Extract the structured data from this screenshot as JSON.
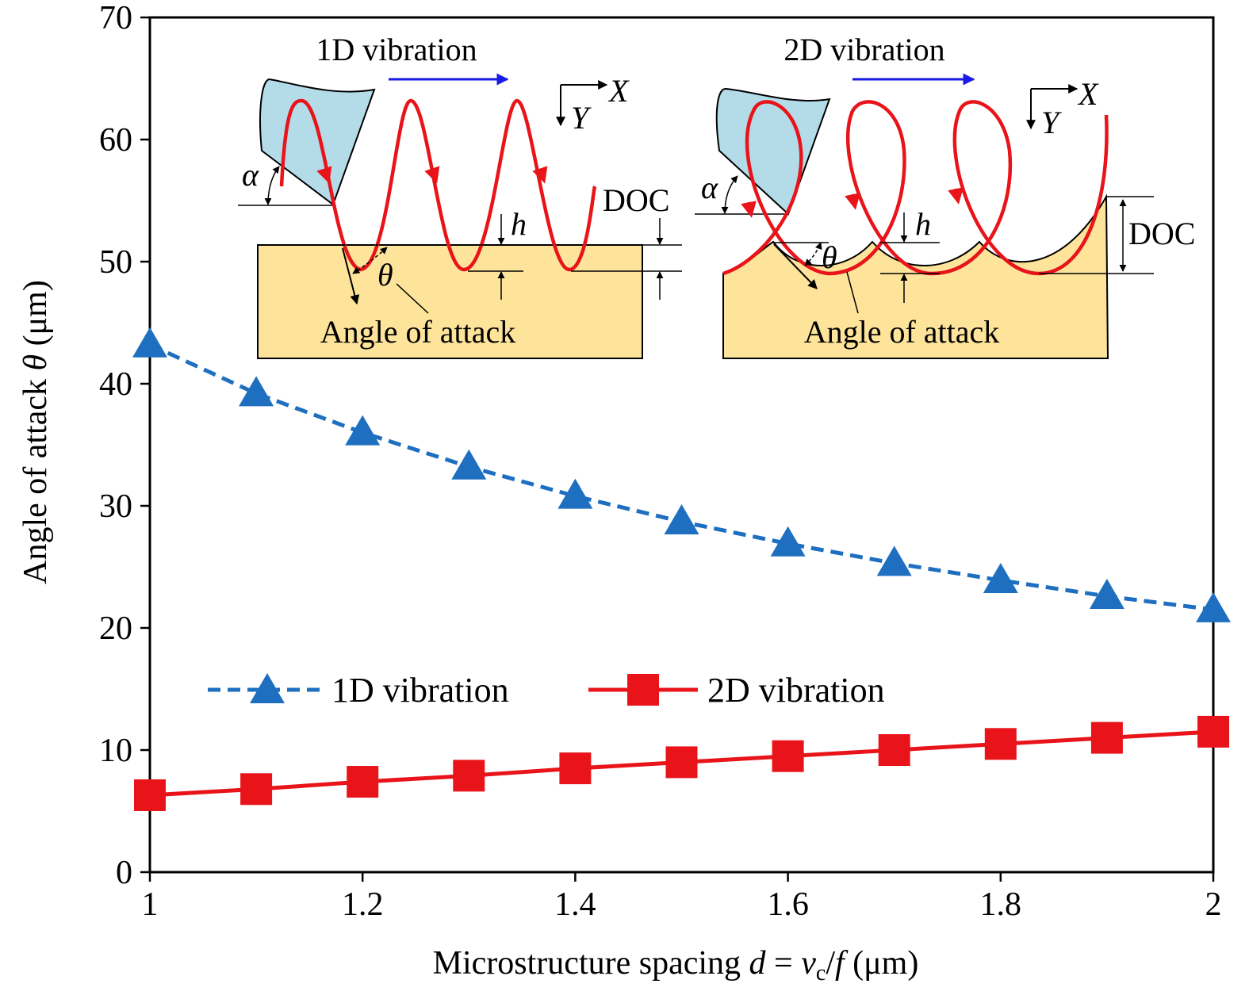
{
  "chart_data": {
    "type": "line",
    "title": "",
    "xlabel": "Microstructure spacing d = vc/f (μm)",
    "xlabel_parts": {
      "pre": "Microstructure spacing ",
      "d": "d",
      "eq": " = ",
      "v": "v",
      "sub": "c",
      "slash": "/",
      "f": "f",
      "unit": " (μm)"
    },
    "ylabel": "Angle of attack θ (μm)",
    "ylabel_parts": {
      "pre": "Angle of attack ",
      "theta": "θ",
      "unit": " (μm)"
    },
    "xlim": [
      1,
      2
    ],
    "ylim": [
      0,
      70
    ],
    "grid": false,
    "legend_position": "center",
    "x_ticks": [
      1,
      1.2,
      1.4,
      1.6,
      1.8,
      2
    ],
    "x_tick_labels": [
      "1",
      "1.2",
      "1.4",
      "1.6",
      "1.8",
      "2"
    ],
    "y_ticks": [
      0,
      10,
      20,
      30,
      40,
      50,
      60,
      70
    ],
    "y_tick_labels": [
      "0",
      "10",
      "20",
      "30",
      "40",
      "50",
      "60",
      "70"
    ],
    "x": [
      1.0,
      1.1,
      1.2,
      1.3,
      1.4,
      1.5,
      1.6,
      1.7,
      1.8,
      1.9,
      2.0
    ],
    "series": [
      {
        "name": "1D vibration",
        "values": [
          43.2,
          39.2,
          36.0,
          33.2,
          30.8,
          28.7,
          26.9,
          25.3,
          23.9,
          22.6,
          21.5
        ],
        "color": "#1F6FC0",
        "marker": "triangle",
        "line": "dashed"
      },
      {
        "name": "2D vibration",
        "values": [
          6.3,
          6.8,
          7.4,
          7.9,
          8.5,
          9.0,
          9.5,
          10.0,
          10.5,
          11.0,
          11.5
        ],
        "color": "#E8141A",
        "marker": "square",
        "line": "solid"
      }
    ]
  },
  "insets": {
    "left": {
      "title": "1D vibration",
      "annotation": "Angle of attack",
      "x_axis": "X",
      "y_axis": "Y",
      "alpha": "α",
      "theta": "θ",
      "h": "h",
      "doc": "DOC"
    },
    "right": {
      "title": "2D vibration",
      "annotation": "Angle of attack",
      "x_axis": "X",
      "y_axis": "Y",
      "alpha": "α",
      "theta": "θ",
      "h": "h",
      "doc": "DOC"
    }
  },
  "colors": {
    "workpiece": "#FDE49A",
    "tool": "#B4DCE8",
    "path": "#E8141A",
    "feed_arrow": "#1A1AE6"
  }
}
